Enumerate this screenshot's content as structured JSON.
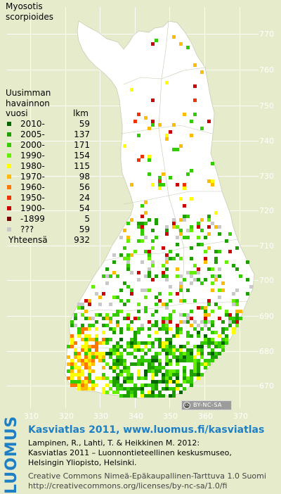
{
  "species": {
    "line1": "Myosotis",
    "line2": "scorpioides"
  },
  "legend": {
    "title_line1": "Uusimman",
    "title_line2": "havainnon",
    "title_line3": "vuosi",
    "count_header": "lkm",
    "items": [
      {
        "label": "2010-",
        "count": "59",
        "color": "#006400"
      },
      {
        "label": "2005-",
        "count": "137",
        "color": "#1f9e00"
      },
      {
        "label": "2000-",
        "count": "171",
        "color": "#33cc00"
      },
      {
        "label": "1990-",
        "count": "154",
        "color": "#66ee00"
      },
      {
        "label": "1980-",
        "count": "115",
        "color": "#ffff00"
      },
      {
        "label": "1970-",
        "count": "98",
        "color": "#ffbb00"
      },
      {
        "label": "1960-",
        "count": "56",
        "color": "#ff7700"
      },
      {
        "label": "1950-",
        "count": "24",
        "color": "#ee3300"
      },
      {
        "label": "1900-",
        "count": "54",
        "color": "#cc0000"
      },
      {
        "label": "-1899",
        "count": "5",
        "color": "#770000"
      },
      {
        "label": "???",
        "count": "59",
        "color": "#c8c8c8"
      }
    ],
    "total_label": "Yhteensä",
    "total_value": "932"
  },
  "axes": {
    "y_ticks": [
      "770",
      "760",
      "750",
      "740",
      "730",
      "720",
      "710",
      "700",
      "690",
      "680",
      "670"
    ],
    "x_ticks": [
      "310",
      "320",
      "330",
      "340",
      "350",
      "360",
      "370"
    ]
  },
  "cc_badge": {
    "icon": "cc",
    "text": "BY-NC-SA"
  },
  "footer": {
    "logo": "LUOMUS",
    "atlas_title": "Kasviatlas 2011, www.luomus.fi/kasviatlas",
    "citation_line1": "Lampinen, R., Lahti, T. & Heikkinen M. 2012:",
    "citation_line2": "Kasviatlas 2011 – Luonnontieteellinen keskusmuseo,",
    "citation_line3": "Helsingin Yliopisto, Helsinki.",
    "license_line1": "Creative Commons Nimeä-Epäkaupallinen-Tarttuva 1.0 Suomi",
    "license_line2": "http://creativecommons.org/licenses/by-nc-sa/1.0/fi"
  },
  "colors": {
    "background": "#e6ebcb",
    "land": "#ffffff",
    "grid": "#ffffff",
    "luomus_blue": "#1f7fc4"
  }
}
